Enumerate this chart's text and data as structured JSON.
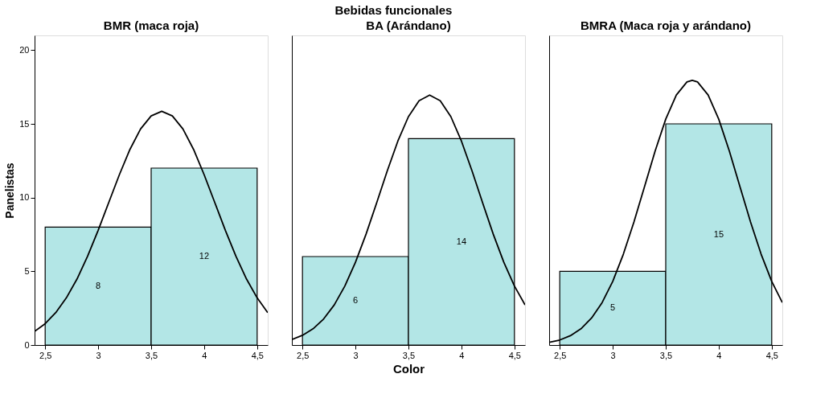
{
  "chart_data": [
    {
      "type": "histogram",
      "title": "BMR (maca roja)",
      "ylabel": "Panelistas",
      "bins": [
        2.5,
        3.5,
        4.5
      ],
      "values": [
        8,
        12
      ],
      "color": "#b3e6e6",
      "value_labels": [
        "8",
        "12"
      ],
      "grid": false,
      "xlim": [
        2.4,
        4.6
      ],
      "xticks": [
        {
          "value": 2.5,
          "label": "2,5"
        },
        3,
        {
          "value": 3.5,
          "label": "3,5"
        },
        4,
        {
          "value": 4.5,
          "label": "4,5"
        }
      ],
      "ylim": [
        0,
        21
      ],
      "yticks": [
        0,
        5,
        10,
        15,
        20
      ],
      "series": [
        {
          "type": "line",
          "color": "#000000",
          "x": [
            2.4,
            2.5,
            2.6,
            2.7,
            2.8,
            2.9,
            3.0,
            3.1,
            3.2,
            3.3,
            3.4,
            3.5,
            3.6,
            3.7,
            3.8,
            3.9,
            4.0,
            4.1,
            4.2,
            4.3,
            4.4,
            4.5,
            4.6
          ],
          "values": [
            0.92,
            1.45,
            2.2,
            3.2,
            4.47,
            6.02,
            7.78,
            9.67,
            11.55,
            13.27,
            14.65,
            15.54,
            15.85,
            15.54,
            14.65,
            13.27,
            11.55,
            9.67,
            7.78,
            6.02,
            4.47,
            3.2,
            2.2
          ]
        }
      ]
    },
    {
      "type": "histogram",
      "title": "BA (Arándano)",
      "xlabel": "Color",
      "annotations": [
        "Bebidas funcionales"
      ],
      "bins": [
        2.5,
        3.5,
        4.5
      ],
      "values": [
        6,
        14
      ],
      "color": "#b3e6e6",
      "value_labels": [
        "6",
        "14"
      ],
      "grid": false,
      "tick_labels": "x",
      "xlim": [
        2.4,
        4.6
      ],
      "xticks": [
        {
          "value": 2.5,
          "label": "2,5"
        },
        3,
        {
          "value": 3.5,
          "label": "3,5"
        },
        4,
        {
          "value": 4.5,
          "label": "4,5"
        }
      ],
      "ylim": [
        0,
        21
      ],
      "yticks": [
        0,
        5,
        10,
        15,
        20
      ],
      "series": [
        {
          "type": "line",
          "color": "#000000",
          "x": [
            2.4,
            2.5,
            2.6,
            2.7,
            2.8,
            2.9,
            3.0,
            3.1,
            3.2,
            3.3,
            3.4,
            3.5,
            3.6,
            3.7,
            3.8,
            3.9,
            4.0,
            4.1,
            4.2,
            4.3,
            4.4,
            4.5,
            4.6
          ],
          "values": [
            0.37,
            0.66,
            1.1,
            1.77,
            2.72,
            4.0,
            5.61,
            7.52,
            9.64,
            11.81,
            13.83,
            15.49,
            16.57,
            16.95,
            16.57,
            15.49,
            13.83,
            11.81,
            9.64,
            7.52,
            5.61,
            4.0,
            2.72
          ]
        }
      ]
    },
    {
      "type": "histogram",
      "title": "BMRA (Maca roja y arándano)",
      "bins": [
        2.5,
        3.5,
        4.5
      ],
      "values": [
        5,
        15
      ],
      "color": "#b3e6e6",
      "value_labels": [
        "5",
        "15"
      ],
      "grid": false,
      "tick_labels": "x",
      "xlim": [
        2.4,
        4.6
      ],
      "xticks": [
        {
          "value": 2.5,
          "label": "2,5"
        },
        3,
        {
          "value": 3.5,
          "label": "3,5"
        },
        4,
        {
          "value": 4.5,
          "label": "4,5"
        }
      ],
      "ylim": [
        0,
        21
      ],
      "yticks": [
        0,
        5,
        10,
        15,
        20
      ],
      "series": [
        {
          "type": "line",
          "color": "#000000",
          "x": [
            2.4,
            2.5,
            2.6,
            2.7,
            2.8,
            2.9,
            3.0,
            3.1,
            3.2,
            3.3,
            3.4,
            3.5,
            3.6,
            3.7,
            3.75,
            3.8,
            3.9,
            4.0,
            4.1,
            4.2,
            4.3,
            4.4,
            4.5,
            4.6
          ],
          "values": [
            0.18,
            0.34,
            0.63,
            1.1,
            1.83,
            2.88,
            4.32,
            6.16,
            8.35,
            10.75,
            13.16,
            15.32,
            16.96,
            17.84,
            17.95,
            17.84,
            16.96,
            15.32,
            13.16,
            10.75,
            8.35,
            6.16,
            4.32,
            2.88
          ]
        }
      ]
    }
  ]
}
